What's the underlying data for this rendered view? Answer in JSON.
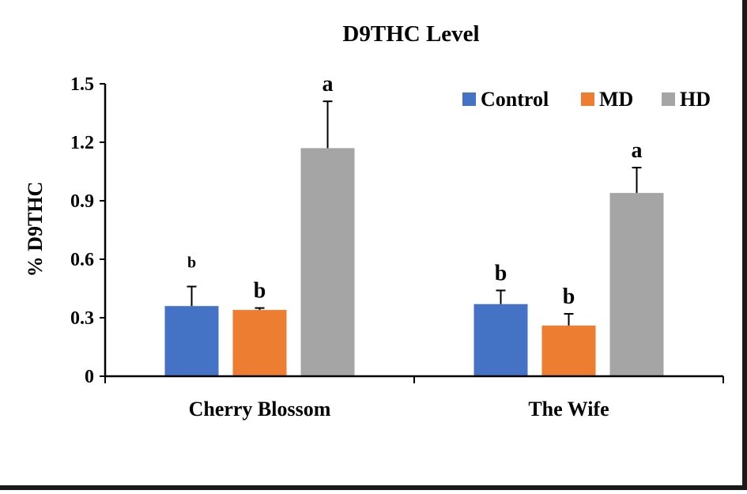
{
  "chart_data": {
    "type": "bar",
    "title": "D9THC Level",
    "xlabel": "",
    "ylabel": "% D9THC",
    "ylim": [
      0,
      1.5
    ],
    "yticks": [
      "0",
      "0.3",
      "0.6",
      "0.9",
      "1.2",
      "1.5"
    ],
    "categories": [
      "Cherry Blossom",
      "The Wife"
    ],
    "series": [
      {
        "name": "Control",
        "color": "#4472C4",
        "values": [
          0.36,
          0.37
        ],
        "errors": [
          0.1,
          0.07
        ],
        "letters": [
          "b",
          "b"
        ]
      },
      {
        "name": "MD",
        "color": "#ED7D31",
        "values": [
          0.34,
          0.26
        ],
        "errors": [
          0.01,
          0.06
        ],
        "letters": [
          "b",
          "b"
        ]
      },
      {
        "name": "HD",
        "color": "#A5A5A5",
        "values": [
          1.17,
          0.94
        ],
        "errors": [
          0.24,
          0.13
        ],
        "letters": [
          "a",
          "a"
        ]
      }
    ],
    "legend": "top-right",
    "grid": false
  }
}
